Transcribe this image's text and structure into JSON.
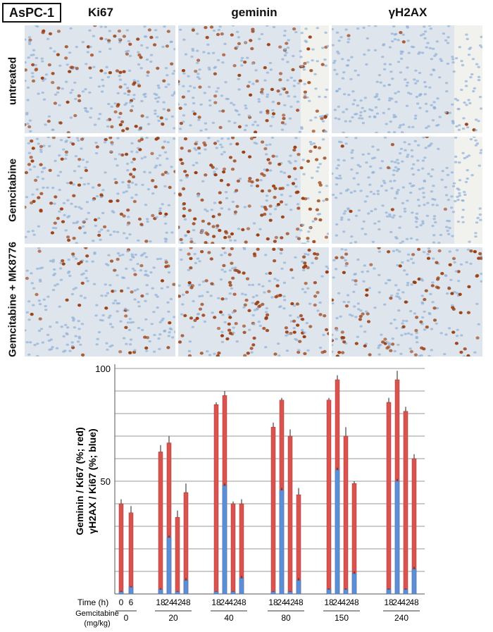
{
  "figure": {
    "cell_line": "AsPC-1",
    "columns": [
      "Ki67",
      "geminin",
      "γH2AX"
    ],
    "rows": [
      "untreated",
      "Gemcitabine",
      "Gemcitabine + MK8776"
    ],
    "stain_colors": {
      "nuclei_blue": "#8fb0d8",
      "positive_brown": "#9a3d10",
      "background": "#dfe5ec"
    }
  },
  "chart_data": {
    "type": "bar",
    "ylabel_line1": "Geminin / Ki67 (%; red)",
    "ylabel_line2": "γH2AX / Ki67 (%; blue)",
    "ylim": [
      0,
      100
    ],
    "yticks": [
      "100",
      "50"
    ],
    "ytick_values": [
      100,
      50
    ],
    "grid": true,
    "time_label": "Time (h)",
    "dose_label_line1": "Gemcitabine",
    "dose_label_line2": "(mg/kg)",
    "colors": {
      "red": "#d9534f",
      "blue": "#5b8fd6",
      "grid": "#9a9a9a"
    },
    "groups": [
      {
        "dose": "0",
        "bars": [
          {
            "time": "0",
            "red": 40,
            "red_err": 2,
            "blue": 1,
            "blue_err": 0.5
          },
          {
            "time": "6",
            "red": 36,
            "red_err": 3,
            "blue": 3,
            "blue_err": 0.5
          }
        ]
      },
      {
        "dose": "20",
        "bars": [
          {
            "time": "18",
            "red": 63,
            "red_err": 3,
            "blue": 2,
            "blue_err": 0.5
          },
          {
            "time": "24",
            "red": 67,
            "red_err": 3,
            "blue": 25,
            "blue_err": 1
          },
          {
            "time": "42",
            "red": 34,
            "red_err": 3,
            "blue": 1,
            "blue_err": 0.3
          },
          {
            "time": "48",
            "red": 45,
            "red_err": 4,
            "blue": 6,
            "blue_err": 1
          }
        ]
      },
      {
        "dose": "40",
        "bars": [
          {
            "time": "18",
            "red": 84,
            "red_err": 1,
            "blue": 1,
            "blue_err": 0.3
          },
          {
            "time": "24",
            "red": 88,
            "red_err": 2,
            "blue": 48,
            "blue_err": 1
          },
          {
            "time": "42",
            "red": 40,
            "red_err": 1,
            "blue": 1,
            "blue_err": 0.3
          },
          {
            "time": "48",
            "red": 40,
            "red_err": 2,
            "blue": 7,
            "blue_err": 1
          }
        ]
      },
      {
        "dose": "80",
        "bars": [
          {
            "time": "18",
            "red": 74,
            "red_err": 2,
            "blue": 1,
            "blue_err": 0.3
          },
          {
            "time": "24",
            "red": 86,
            "red_err": 1,
            "blue": 46,
            "blue_err": 1
          },
          {
            "time": "42",
            "red": 70,
            "red_err": 3,
            "blue": 1,
            "blue_err": 0.3
          },
          {
            "time": "48",
            "red": 44,
            "red_err": 3,
            "blue": 6,
            "blue_err": 1
          }
        ]
      },
      {
        "dose": "150",
        "bars": [
          {
            "time": "18",
            "red": 86,
            "red_err": 1,
            "blue": 2,
            "blue_err": 0.5
          },
          {
            "time": "24",
            "red": 95,
            "red_err": 2,
            "blue": 55,
            "blue_err": 1
          },
          {
            "time": "42",
            "red": 70,
            "red_err": 4,
            "blue": 2,
            "blue_err": 0.5
          },
          {
            "time": "48",
            "red": 49,
            "red_err": 1,
            "blue": 9,
            "blue_err": 1
          }
        ]
      },
      {
        "dose": "240",
        "bars": [
          {
            "time": "18",
            "red": 85,
            "red_err": 2,
            "blue": 2,
            "blue_err": 0.5
          },
          {
            "time": "24",
            "red": 95,
            "red_err": 4,
            "blue": 50,
            "blue_err": 1
          },
          {
            "time": "42",
            "red": 81,
            "red_err": 2,
            "blue": 2,
            "blue_err": 0.5
          },
          {
            "time": "48",
            "red": 60,
            "red_err": 2,
            "blue": 11,
            "blue_err": 1
          }
        ]
      }
    ]
  }
}
